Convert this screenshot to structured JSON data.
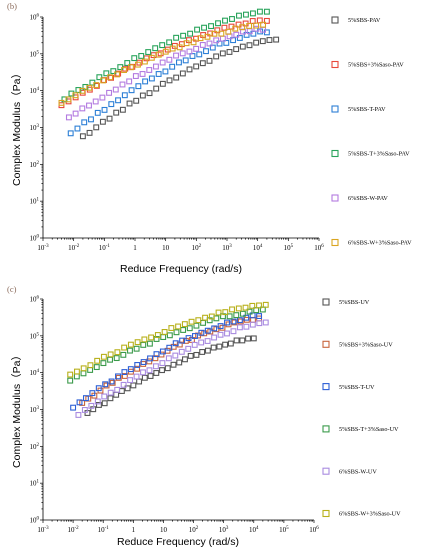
{
  "chart_data": [
    {
      "type": "scatter",
      "panel_label": "(b)",
      "xlabel": "Reduce Frequency (rad/s)",
      "ylabel": "Complex Modulus（Pa）",
      "xscale": "log",
      "yscale": "log",
      "xlim": [
        0.001,
        1000000
      ],
      "ylim": [
        1,
        1000000
      ],
      "x_tick_labels": [
        "10-3",
        "10-2",
        "10-1",
        "1",
        "10",
        "102",
        "103",
        "104",
        "105",
        "106"
      ],
      "y_tick_labels": [
        "100",
        "101",
        "102",
        "103",
        "104",
        "105",
        "106"
      ],
      "legend_placement": "right",
      "grid": false,
      "series": [
        {
          "name": "5%SBS-PAV",
          "color": "#555555",
          "x_start": 0.02,
          "x_end": 40000,
          "y_start": 560,
          "y_end": 250000
        },
        {
          "name": "5%SBS+3%Saso-PAV",
          "color": "#e8473a",
          "x_start": 0.004,
          "x_end": 20000,
          "y_start": 4000,
          "y_end": 830000
        },
        {
          "name": "5%SBS-T-PAV",
          "color": "#2c7fd6",
          "x_start": 0.008,
          "x_end": 20000,
          "y_start": 700,
          "y_end": 400000
        },
        {
          "name": "5%SBS-T+3%Saso-PAV",
          "color": "#27a35a",
          "x_start": 0.005,
          "x_end": 20000,
          "y_start": 6000,
          "y_end": 1400000
        },
        {
          "name": "6%SBS-W-PAV",
          "color": "#b37be0",
          "x_start": 0.007,
          "x_end": 15000,
          "y_start": 1800,
          "y_end": 480000
        },
        {
          "name": "6%SBS-W+3%Saso-PAV",
          "color": "#d9a520",
          "x_start": 0.004,
          "x_end": 15000,
          "y_start": 4500,
          "y_end": 620000
        }
      ]
    },
    {
      "type": "scatter",
      "panel_label": "(c)",
      "xlabel": "Reduce Frequency (rad/s)",
      "ylabel": "Complex Modulus（Pa）",
      "xscale": "log",
      "yscale": "log",
      "xlim": [
        0.001,
        1000000
      ],
      "ylim": [
        1,
        1000000
      ],
      "x_tick_labels": [
        "10-3",
        "10-2",
        "10-1",
        "1",
        "10",
        "102",
        "103",
        "104",
        "105",
        "106"
      ],
      "y_tick_labels": [
        "100",
        "101",
        "102",
        "103",
        "104",
        "105",
        "106"
      ],
      "legend_placement": "right",
      "grid": false,
      "series": [
        {
          "name": "5%SBS-UV",
          "color": "#555555",
          "x_start": 0.03,
          "x_end": 10000,
          "y_start": 800,
          "y_end": 85000
        },
        {
          "name": "5%SBS+3%Saso-UV",
          "color": "#c8643c",
          "x_start": 0.02,
          "x_end": 15000,
          "y_start": 1500,
          "y_end": 300000
        },
        {
          "name": "5%SBS-T-UV",
          "color": "#2c5fd6",
          "x_start": 0.01,
          "x_end": 15000,
          "y_start": 1200,
          "y_end": 350000
        },
        {
          "name": "5%SBS-T+3%Saso-UV",
          "color": "#3a9a4a",
          "x_start": 0.008,
          "x_end": 20000,
          "y_start": 6000,
          "y_end": 500000
        },
        {
          "name": "6%SBS-W-UV",
          "color": "#a98be0",
          "x_start": 0.015,
          "x_end": 25000,
          "y_start": 700,
          "y_end": 220000
        },
        {
          "name": "6%SBS-W+3%Saso-UV",
          "color": "#b8b01a",
          "x_start": 0.008,
          "x_end": 25000,
          "y_start": 9000,
          "y_end": 700000
        }
      ]
    }
  ]
}
